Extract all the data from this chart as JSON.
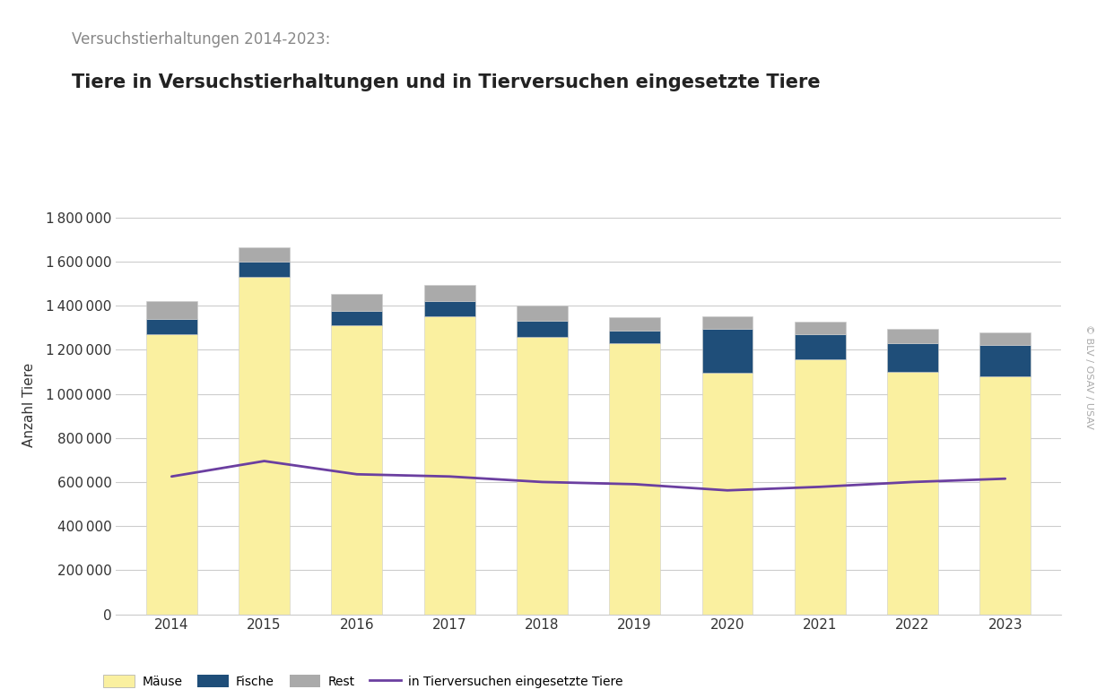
{
  "years": [
    2014,
    2015,
    2016,
    2017,
    2018,
    2019,
    2020,
    2021,
    2022,
    2023
  ],
  "maeuse": [
    1270000,
    1530000,
    1310000,
    1350000,
    1260000,
    1230000,
    1095000,
    1155000,
    1100000,
    1080000
  ],
  "fische": [
    70000,
    70000,
    65000,
    70000,
    70000,
    55000,
    200000,
    115000,
    130000,
    140000
  ],
  "rest": [
    80000,
    65000,
    80000,
    75000,
    72000,
    62000,
    58000,
    58000,
    65000,
    58000
  ],
  "tierversuche": [
    625000,
    695000,
    635000,
    625000,
    600000,
    590000,
    562000,
    578000,
    600000,
    615000
  ],
  "color_maeuse": "#FAF0A0",
  "color_fische": "#1F4E79",
  "color_rest": "#AAAAAA",
  "color_tierversuche": "#6B3FA0",
  "color_background": "#FFFFFF",
  "title_top": "Versuchstierhaltungen 2014-2023:",
  "title_main": "Tiere in Versuchstierhaltungen und in Tierversuchen eingesetzte Tiere",
  "ylabel": "Anzahl Tiere",
  "yticks": [
    0,
    200000,
    400000,
    600000,
    800000,
    1000000,
    1200000,
    1400000,
    1600000,
    1800000
  ],
  "ylim": [
    0,
    1900000
  ],
  "legend_maeuse": "Mäuse",
  "legend_fische": "Fische",
  "legend_rest": "Rest",
  "legend_line": "in Tierversuchen eingesetzte Tiere",
  "watermark": "© BLV / OSAV / USAV",
  "bar_width": 0.55
}
